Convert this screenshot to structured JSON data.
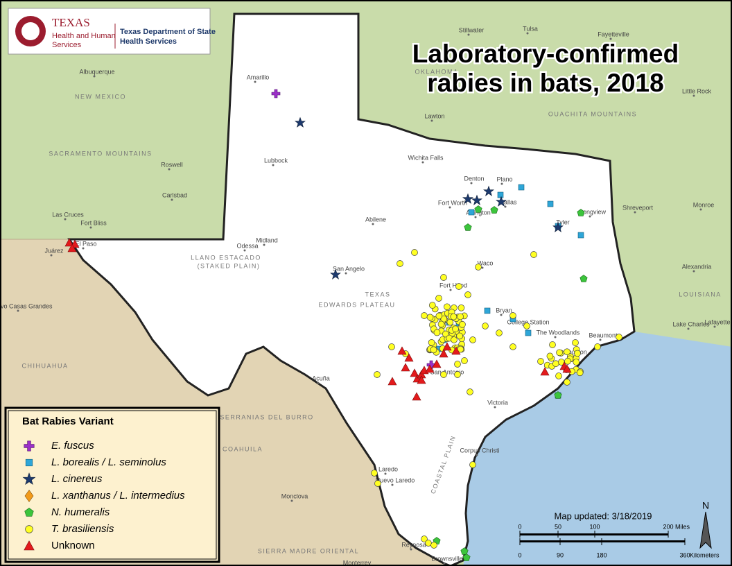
{
  "header": {
    "org_1": "TEXAS",
    "org_2": "Health and Human",
    "org_3": "Services",
    "dept_1": "Texas Department of State",
    "dept_2": "Health Services"
  },
  "title": [
    "Laboratory-confirmed",
    "rabies in bats, 2018"
  ],
  "legend": {
    "title": "Bat Rabies Variant",
    "items": [
      "E. fuscus",
      "L. borealis / L. seminolus",
      "L. cinereus",
      "L. xanthanus / L. intermedius",
      "N. humeralis",
      "T. brasiliensis",
      "Unknown"
    ]
  },
  "map_updated": "Map updated: 3/18/2019",
  "scale": {
    "miles": [
      "0",
      "50",
      "100",
      "200"
    ],
    "miles_unit": "Miles",
    "km": [
      "0",
      "90",
      "180",
      "360"
    ],
    "km_unit": "Kilometers"
  },
  "north": "N",
  "places": [
    "Amarillo",
    "Lubbock",
    "Midland",
    "Odessa",
    "San Angelo",
    "Abilene",
    "Wichita Falls",
    "Denton",
    "Plano",
    "Fort Worth",
    "Dallas",
    "Arlington",
    "Tyler",
    "Longview",
    "Waco",
    "Fort Hood",
    "Bryan",
    "College Station",
    "The Woodlands",
    "Houston",
    "Beaumont",
    "San Antonio",
    "Victoria",
    "Corpus Christi",
    "Laredo",
    "Nuevo Laredo",
    "Brownsville",
    "Reynosa",
    "Acuña",
    "El Paso",
    "Juárez",
    "Las Cruces",
    "Fort Bliss",
    "Carlsbad",
    "Roswell",
    "Albuquerque",
    "Shreveport",
    "Monroe",
    "Alexandria",
    "Lake Charles",
    "Lafayette",
    "Tulsa",
    "Stillwater",
    "Lawton",
    "Little Rock",
    "Fayetteville",
    "Monclova",
    "Monterrey",
    "Nuevo Casas Grandes"
  ],
  "regions": [
    "NEW MEXICO",
    "OKLAHOMA",
    "LOUISIANA",
    "TEXAS",
    "EDWARDS PLATEAU",
    "LLANO ESTACADO",
    "(STAKED PLAIN)",
    "CHIHUAHUA",
    "COAHUILA",
    "SERRANIAS DEL BURRO",
    "SIERRA MADRE ORIENTAL",
    "OUACHITA MOUNTAINS",
    "SACRAMENTO MOUNTAINS",
    "COASTAL PLAIN"
  ]
}
